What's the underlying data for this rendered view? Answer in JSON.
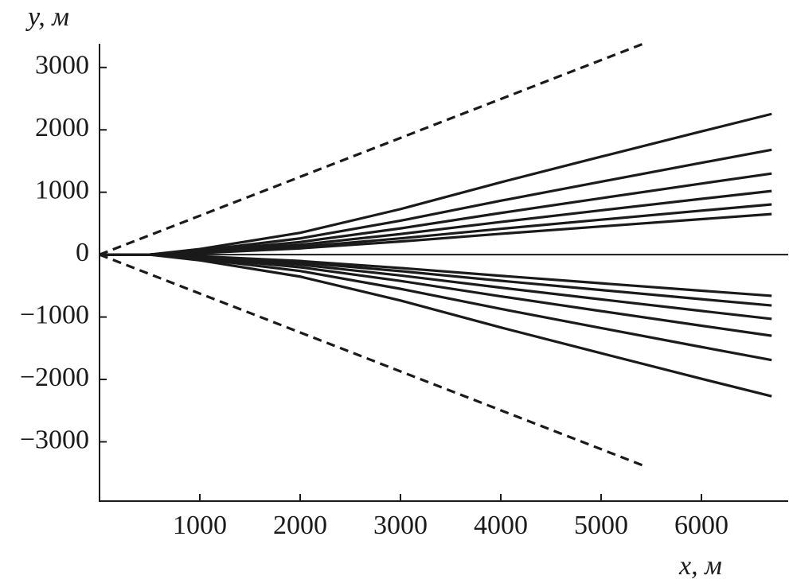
{
  "chart_data": {
    "type": "line",
    "xlabel": "x, м",
    "ylabel": "y, м",
    "x": [
      0,
      500,
      1000,
      2000,
      3000,
      4000,
      5000,
      6000,
      6700
    ],
    "xlim": [
      0,
      6865
    ],
    "ylim": [
      -3950,
      3380
    ],
    "xticks": [
      1000,
      2000,
      3000,
      4000,
      5000,
      6000
    ],
    "yticks": [
      {
        "value": -3000,
        "label": "−3000"
      },
      {
        "value": -2000,
        "label": "−2000"
      },
      {
        "value": -1000,
        "label": "−1000"
      },
      0,
      1000,
      2000,
      3000
    ],
    "zero_line": true,
    "series": [
      {
        "color": "#1a1a1a",
        "dashed": true,
        "x": [
          0,
          5420
        ],
        "values": [
          0,
          3380
        ]
      },
      {
        "color": "#1a1a1a",
        "dashed": true,
        "x": [
          0,
          5420
        ],
        "values": [
          0,
          -3380
        ]
      },
      {
        "color": "#1a1a1a",
        "values": [
          0,
          0,
          90,
          350,
          730,
          1160,
          1570,
          1975,
          2255
        ]
      },
      {
        "color": "#1a1a1a",
        "values": [
          0,
          0,
          67,
          260,
          544,
          864,
          1169,
          1472,
          1680
        ]
      },
      {
        "color": "#1a1a1a",
        "values": [
          0,
          0,
          52,
          202,
          421,
          668,
          905,
          1139,
          1300
        ]
      },
      {
        "color": "#1a1a1a",
        "values": [
          0,
          0,
          41,
          158,
          330,
          524,
          710,
          894,
          1020
        ]
      },
      {
        "color": "#1a1a1a",
        "values": [
          0,
          0,
          32,
          125,
          261,
          414,
          560,
          705,
          805
        ]
      },
      {
        "color": "#1a1a1a",
        "values": [
          0,
          0,
          26,
          101,
          211,
          334,
          452,
          569,
          650
        ]
      },
      {
        "color": "#1a1a1a",
        "values": [
          0,
          0,
          -26,
          -102,
          -214,
          -339,
          -459,
          -578,
          -660
        ]
      },
      {
        "color": "#1a1a1a",
        "values": [
          0,
          0,
          -33,
          -126,
          -264,
          -419,
          -567,
          -714,
          -815
        ]
      },
      {
        "color": "#1a1a1a",
        "values": [
          0,
          0,
          -41,
          -160,
          -334,
          -529,
          -717,
          -902,
          -1030
        ]
      },
      {
        "color": "#1a1a1a",
        "values": [
          0,
          0,
          -52,
          -202,
          -421,
          -668,
          -905,
          -1139,
          -1300
        ]
      },
      {
        "color": "#1a1a1a",
        "values": [
          0,
          0,
          -68,
          -262,
          -548,
          -869,
          -1176,
          -1480,
          -1690
        ]
      },
      {
        "color": "#1a1a1a",
        "values": [
          0,
          0,
          -91,
          -352,
          -735,
          -1167,
          -1580,
          -1989,
          -2270
        ]
      }
    ]
  }
}
